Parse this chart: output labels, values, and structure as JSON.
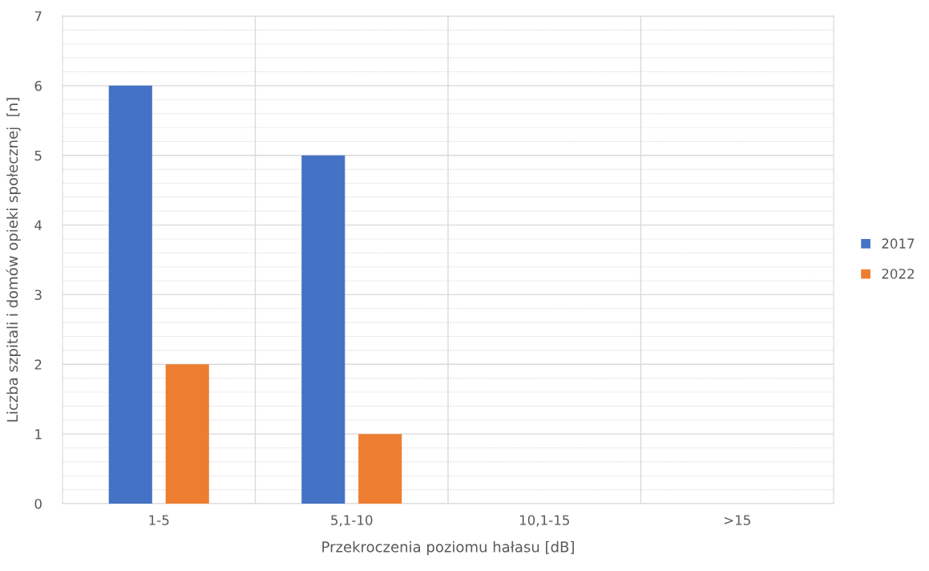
{
  "chart_data": {
    "type": "bar",
    "xlabel": "Przekroczenia poziomu hałasu [dB]",
    "ylabel": "Liczba szpitali i domów opieki społecznej  [n]",
    "categories": [
      "1-5",
      "5,1-10",
      "10,1-15",
      ">15"
    ],
    "series": [
      {
        "name": "2017",
        "color": "#4472c4",
        "values": [
          6,
          5,
          0,
          0
        ]
      },
      {
        "name": "2022",
        "color": "#ed7d31",
        "values": [
          2,
          1,
          0,
          0
        ]
      }
    ],
    "ylim": [
      0,
      7
    ],
    "yticks": [
      0,
      1,
      2,
      3,
      4,
      5,
      6,
      7
    ],
    "grid": true,
    "legend": "right"
  }
}
